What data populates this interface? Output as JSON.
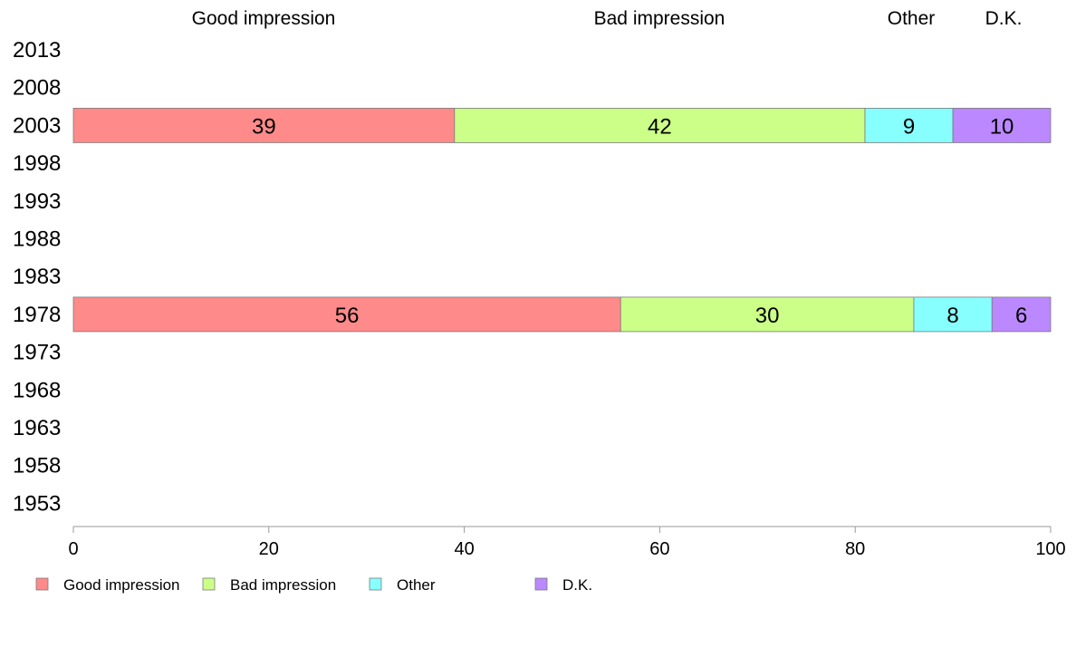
{
  "chart_data": {
    "type": "bar",
    "orientation": "horizontal",
    "stacked": true,
    "categories": [
      "2013",
      "2008",
      "2003",
      "1998",
      "1993",
      "1988",
      "1983",
      "1978",
      "1973",
      "1968",
      "1963",
      "1958",
      "1953"
    ],
    "series": [
      {
        "name": "Good impression",
        "color": "#ff8a8a",
        "values": [
          null,
          null,
          39,
          null,
          null,
          null,
          null,
          56,
          null,
          null,
          null,
          null,
          null
        ]
      },
      {
        "name": "Bad impression",
        "color": "#ccff88",
        "values": [
          null,
          null,
          42,
          null,
          null,
          null,
          null,
          30,
          null,
          null,
          null,
          null,
          null
        ]
      },
      {
        "name": "Other",
        "color": "#88ffff",
        "values": [
          null,
          null,
          9,
          null,
          null,
          null,
          null,
          8,
          null,
          null,
          null,
          null,
          null
        ]
      },
      {
        "name": "D.K.",
        "color": "#bb88ff",
        "values": [
          null,
          null,
          10,
          null,
          null,
          null,
          null,
          6,
          null,
          null,
          null,
          null,
          null
        ]
      }
    ],
    "header_labels": [
      "Good impression",
      "Bad impression",
      "Other",
      "D.K."
    ],
    "xlim": [
      0,
      100
    ],
    "xticks": [
      "0",
      "20",
      "40",
      "60",
      "80",
      "100"
    ],
    "title": "",
    "xlabel": "",
    "ylabel": "",
    "legend_position": "bottom-left",
    "grid": false
  }
}
